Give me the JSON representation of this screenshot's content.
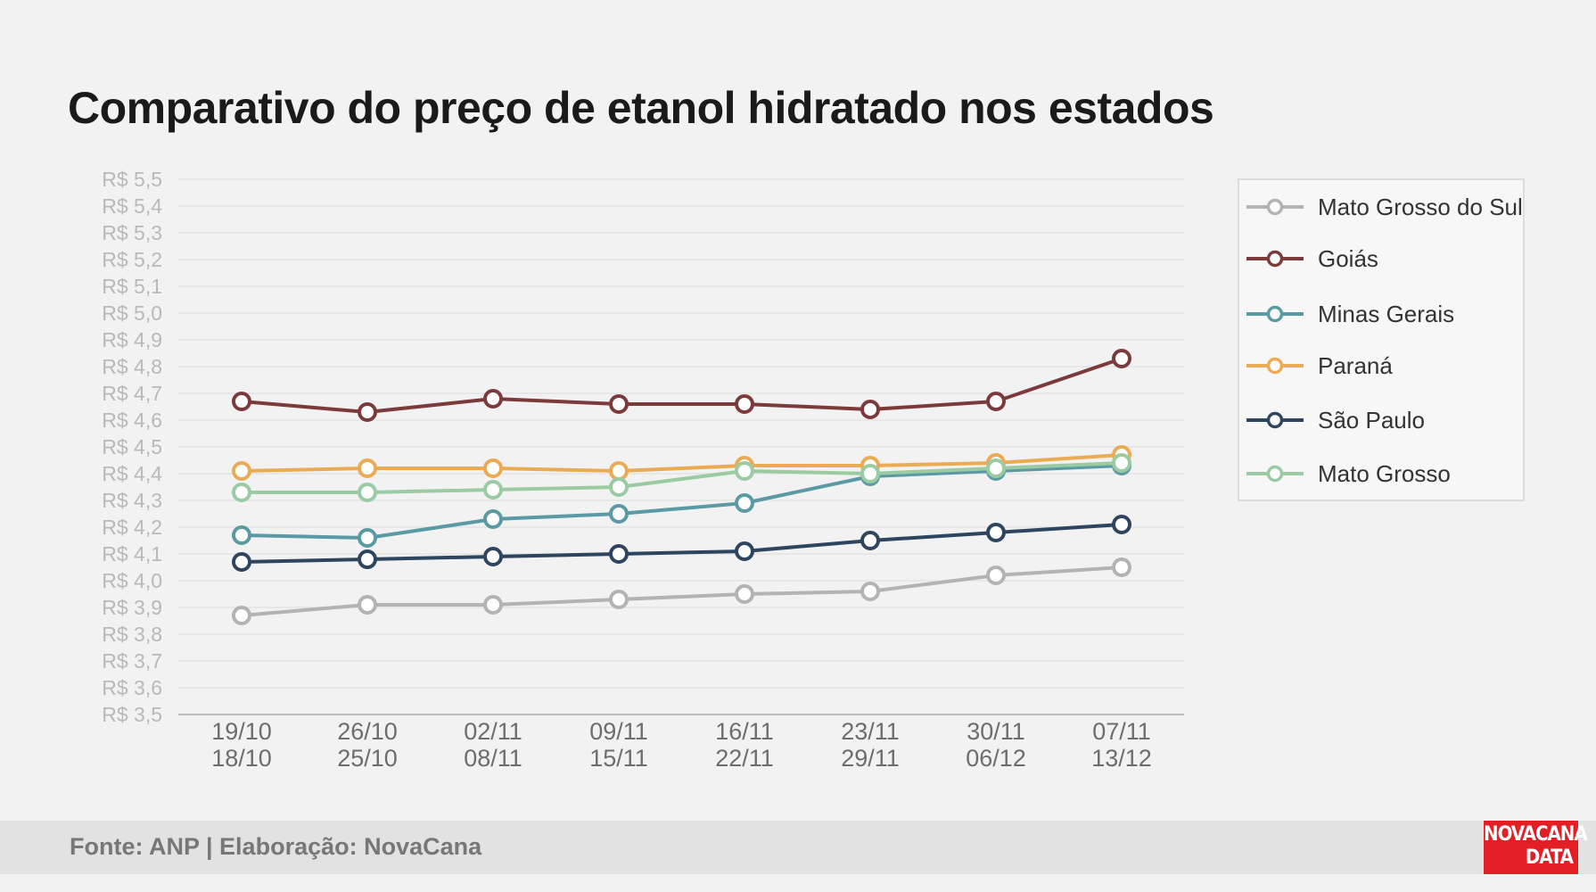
{
  "chart_data": {
    "type": "line",
    "title": "Comparativo do preço de etanol hidratado nos estados",
    "categories": [
      [
        "19/10",
        "18/10"
      ],
      [
        "26/10",
        "25/10"
      ],
      [
        "02/11",
        "08/11"
      ],
      [
        "09/11",
        "15/11"
      ],
      [
        "16/11",
        "22/11"
      ],
      [
        "23/11",
        "29/11"
      ],
      [
        "30/11",
        "06/12"
      ],
      [
        "07/11",
        "13/12"
      ]
    ],
    "y_ticks": [
      "R$ 5,5",
      "R$ 5,4",
      "R$ 5,3",
      "R$ 5,2",
      "R$ 5,1",
      "R$ 5,0",
      "R$ 4,9",
      "R$ 4,8",
      "R$ 4,7",
      "R$ 4,6",
      "R$ 4,5",
      "R$ 4,4",
      "R$ 4,3",
      "R$ 4,2",
      "R$ 4,1",
      "R$ 4,0",
      "R$ 3,9",
      "R$ 3,8",
      "R$ 3,7",
      "R$ 3,6",
      "R$ 3,5"
    ],
    "ylim": [
      3.5,
      5.5
    ],
    "grid": true,
    "legend_position": "right",
    "series": [
      {
        "name": "Mato Grosso do Sul",
        "color": "#b3b3b3",
        "values": [
          3.87,
          3.91,
          3.91,
          3.93,
          3.95,
          3.96,
          4.02,
          4.05
        ]
      },
      {
        "name": "Goiás",
        "color": "#7a3b3a",
        "values": [
          4.67,
          4.63,
          4.68,
          4.66,
          4.66,
          4.64,
          4.67,
          4.83
        ]
      },
      {
        "name": "Minas Gerais",
        "color": "#5b9aa4",
        "values": [
          4.17,
          4.16,
          4.23,
          4.25,
          4.29,
          4.39,
          4.41,
          4.43
        ]
      },
      {
        "name": "Paraná",
        "color": "#ebab54",
        "values": [
          4.41,
          4.42,
          4.42,
          4.41,
          4.43,
          4.43,
          4.44,
          4.47
        ]
      },
      {
        "name": "São Paulo",
        "color": "#2e4560",
        "values": [
          4.07,
          4.08,
          4.09,
          4.1,
          4.11,
          4.15,
          4.18,
          4.21
        ]
      },
      {
        "name": "Mato Grosso",
        "color": "#9acba2",
        "values": [
          4.33,
          4.33,
          4.34,
          4.35,
          4.41,
          4.4,
          4.42,
          4.44
        ]
      }
    ]
  },
  "footer": {
    "source": "Fonte: ANP | Elaboração: NovaCana"
  },
  "logo": {
    "line1": "NOVACANA",
    "line2": "DATA",
    "color": "#e31e24"
  }
}
